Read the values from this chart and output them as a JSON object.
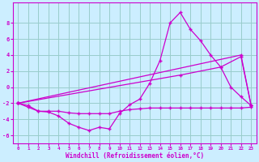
{
  "background_color": "#cceeff",
  "grid_color": "#99cccc",
  "line_color": "#cc00cc",
  "xlabel": "Windchill (Refroidissement éolien,°C)",
  "xlim": [
    -0.5,
    23.5
  ],
  "ylim": [
    -7,
    10.5
  ],
  "yticks": [
    -6,
    -4,
    -2,
    0,
    2,
    4,
    6,
    8
  ],
  "xticks": [
    0,
    1,
    2,
    3,
    4,
    5,
    6,
    7,
    8,
    9,
    10,
    11,
    12,
    13,
    14,
    15,
    16,
    17,
    18,
    19,
    20,
    21,
    22,
    23
  ],
  "lines": [
    {
      "x": [
        0,
        1,
        2,
        3,
        4,
        5,
        6,
        7,
        8,
        9,
        10,
        11,
        12,
        13,
        14,
        15,
        16,
        17,
        18,
        19,
        20,
        21,
        22,
        23
      ],
      "y": [
        -2,
        -2.3,
        -3.0,
        -3.1,
        -3.6,
        -4.5,
        -5.0,
        -5.4,
        -5.0,
        -5.2,
        -3.3,
        -2.2,
        -1.5,
        0.5,
        3.3,
        8.0,
        9.3,
        7.2,
        5.8,
        4.0,
        2.5,
        0.0,
        -1.2,
        -2.3
      ]
    },
    {
      "x": [
        0,
        1,
        2,
        3,
        4,
        5,
        6,
        7,
        8,
        9,
        10,
        11,
        12,
        13,
        14,
        15,
        16,
        17,
        18,
        19,
        20,
        21,
        22,
        23
      ],
      "y": [
        -2,
        -2.5,
        -3.0,
        -3.0,
        -3.0,
        -3.2,
        -3.3,
        -3.3,
        -3.3,
        -3.3,
        -3.0,
        -2.8,
        -2.7,
        -2.6,
        -2.6,
        -2.6,
        -2.6,
        -2.6,
        -2.6,
        -2.6,
        -2.6,
        -2.6,
        -2.6,
        -2.5
      ]
    },
    {
      "x": [
        0,
        16,
        20,
        22,
        23
      ],
      "y": [
        -2,
        1.5,
        2.5,
        3.8,
        -2.3
      ]
    },
    {
      "x": [
        0,
        22,
        23
      ],
      "y": [
        -2,
        4.0,
        -2.3
      ]
    }
  ]
}
